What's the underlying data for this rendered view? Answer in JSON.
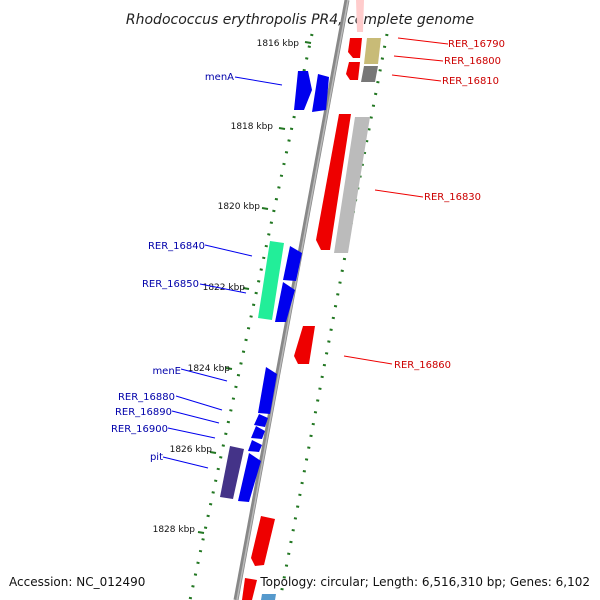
{
  "title": "Rhodococcus erythropolis PR4, complete genome",
  "footer": {
    "accession": "Accession: NC_012490",
    "topology": "Topology: circular; Length: 6,516,310 bp; Genes: 6,102"
  },
  "ticks": [
    "1816 kbp",
    "1818 kbp",
    "1820 kbp",
    "1822 kbp",
    "1824 kbp",
    "1826 kbp",
    "1828 kbp"
  ],
  "genes_left": [
    "menA",
    "RER_16840",
    "RER_16850",
    "menE",
    "RER_16880",
    "RER_16890",
    "RER_16900",
    "pit"
  ],
  "genes_right": [
    "RER_16790",
    "RER_16800",
    "RER_16810",
    "RER_16830",
    "RER_16860"
  ],
  "colors": {
    "forward": "#0000ee",
    "reverse": "#ee0000",
    "grey": "#bbbbbb",
    "olive": "#c8bb77",
    "dark_grey": "#777777",
    "teal": "#22ee99",
    "purple": "#443388",
    "light_blue": "#5599cc",
    "tick": "#227722",
    "backbone": "#888888"
  }
}
